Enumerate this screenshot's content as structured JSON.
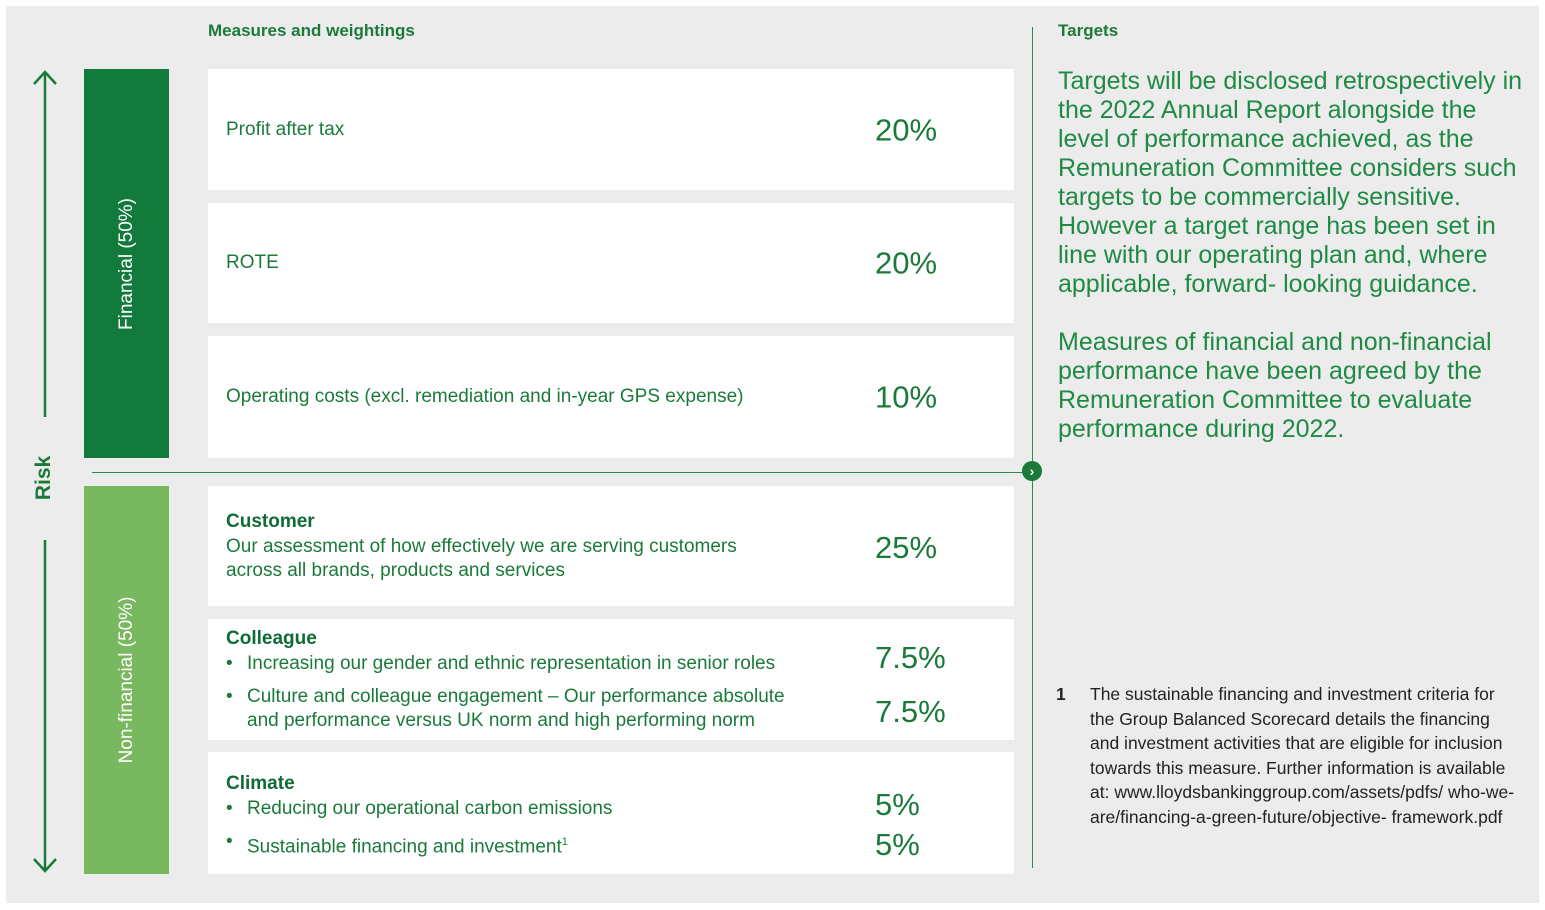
{
  "headers": {
    "measures": "Measures and weightings",
    "targets": "Targets"
  },
  "risk_label": "Risk",
  "bars": {
    "financial": "Financial (50%)",
    "non_financial": "Non-financial (50%)"
  },
  "colors": {
    "financial_bar": "#127a3b",
    "non_financial_bar": "#78b95f",
    "text_green": "#1b7a3a",
    "panel_bg": "#ececec"
  },
  "financial_measures": [
    {
      "label": "Profit after tax",
      "weight": "20%"
    },
    {
      "label": "ROTE",
      "weight": "20%"
    },
    {
      "label": "Operating costs (excl. remediation and in-year GPS expense)",
      "weight": "10%"
    }
  ],
  "customer": {
    "title": "Customer",
    "line1": "Our assessment of how effectively we are serving customers",
    "line2": "across all brands, products and services",
    "weight": "25%"
  },
  "colleague": {
    "title": "Colleague",
    "bullet1": "Increasing our gender and ethnic representation in senior roles",
    "bullet2_line1": "Culture and colleague engagement – Our performance absolute",
    "bullet2_line2": "and performance versus UK norm and high performing norm",
    "weight1": "7.5%",
    "weight2": "7.5%"
  },
  "climate": {
    "title": "Climate",
    "bullet1": "Reducing our operational carbon emissions",
    "bullet2": "Sustainable financing and investment",
    "bullet2_sup": "1",
    "weight1": "5%",
    "weight2": "5%"
  },
  "targets_text": {
    "para1": "Targets will be disclosed retrospectively in the 2022 Annual Report alongside the level of performance achieved, as the Remuneration Committee considers such targets to be commercially sensitive. However a target range has been set in line with our operating plan and, where applicable, forward- looking guidance.",
    "para2": "Measures of financial and non-financial performance have been agreed by the Remuneration Committee to evaluate performance during 2022."
  },
  "footnote": {
    "number": "1",
    "text": "The sustainable financing and investment criteria for the Group Balanced Scorecard details the financing and investment activities that are eligible for inclusion towards this measure. Further information is available at: www.lloydsbankinggroup.com/assets/pdfs/ who-we-are/financing-a-green-future/objective- framework.pdf"
  },
  "icons": {
    "up_arrow": "arrow-up-icon",
    "down_arrow": "arrow-down-icon",
    "chevron": "chevron-right-icon"
  }
}
